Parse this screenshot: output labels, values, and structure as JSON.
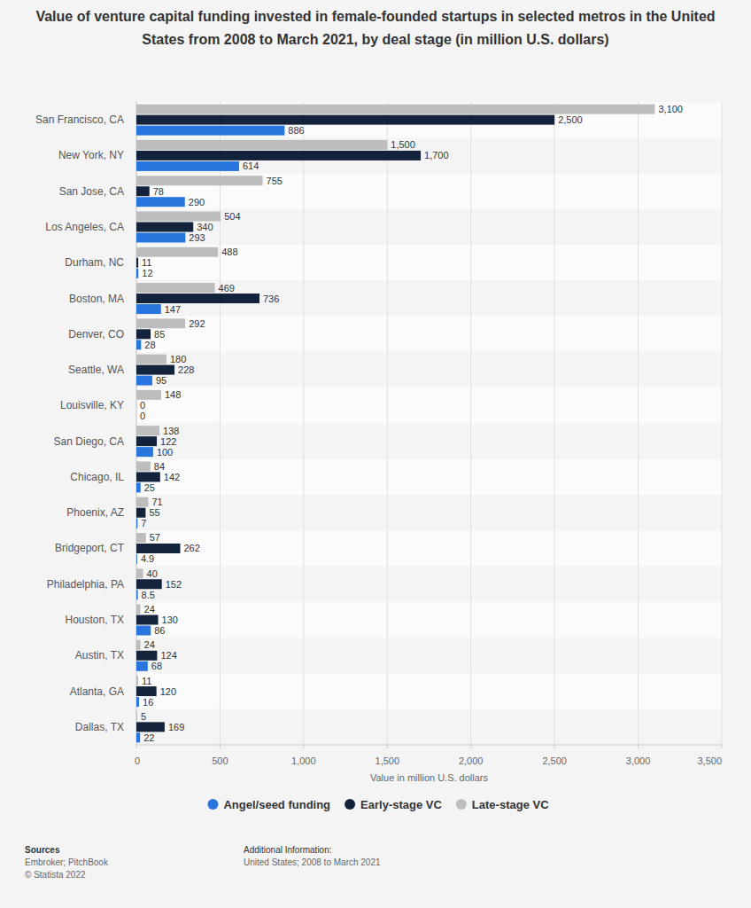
{
  "chart_data": {
    "type": "bar",
    "title": "Value of venture capital funding invested in female-founded startups in selected metros in the United States from 2008 to March 2021, by deal stage (in million U.S. dollars)",
    "x_label": "Value in million U.S. dollars",
    "orientation": "horizontal",
    "data_labels": true,
    "grid": true,
    "legend": "bottom",
    "categories": [
      "San Francisco, CA",
      "New York, NY",
      "San Jose, CA",
      "Los Angeles, CA",
      "Durham, NC",
      "Boston, MA",
      "Denver, CO",
      "Seattle, WA",
      "Louisville, KY",
      "San Diego, CA",
      "Chicago, IL",
      "Phoenix, AZ",
      "Bridgeport, CT",
      "Philadelphia, PA",
      "Houston, TX",
      "Austin, TX",
      "Atlanta, GA",
      "Dallas, TX"
    ],
    "series": [
      {
        "name": "Angel/seed funding",
        "color": "#2876dd",
        "values": [
          886,
          614,
          290,
          293,
          12,
          147,
          28,
          95,
          0,
          100,
          25,
          7,
          4.9,
          8.5,
          86,
          68,
          16,
          22
        ],
        "value_labels": [
          "886",
          "614",
          "290",
          "293",
          "12",
          "147",
          "28",
          "95",
          "0",
          "100",
          "25",
          "7",
          "4.9",
          "8.5",
          "86",
          "68",
          "16",
          "22"
        ]
      },
      {
        "name": "Early-stage VC",
        "color": "#14233c",
        "values": [
          2500,
          1700,
          78,
          340,
          11,
          736,
          85,
          228,
          0,
          122,
          142,
          55,
          262,
          152,
          130,
          124,
          120,
          169
        ],
        "value_labels": [
          "2,500",
          "1,700",
          "78",
          "340",
          "11",
          "736",
          "85",
          "228",
          "0",
          "122",
          "142",
          "55",
          "262",
          "152",
          "130",
          "124",
          "120",
          "169"
        ]
      },
      {
        "name": "Late-stage VC",
        "color": "#bdbdbd",
        "values": [
          3100,
          1500,
          755,
          504,
          488,
          469,
          292,
          180,
          148,
          138,
          84,
          71,
          57,
          40,
          24,
          24,
          11,
          5
        ],
        "value_labels": [
          "3,100",
          "1,500",
          "755",
          "504",
          "488",
          "469",
          "292",
          "180",
          "148",
          "138",
          "84",
          "71",
          "57",
          "40",
          "24",
          "24",
          "11",
          "5"
        ]
      }
    ],
    "xlim": [
      0,
      3500
    ],
    "xticks": [
      0,
      500,
      {
        "value": 1000,
        "label": "1,000"
      },
      {
        "value": 1500,
        "label": "1,500"
      },
      {
        "value": 2000,
        "label": "2,000"
      },
      {
        "value": 2500,
        "label": "2,500"
      },
      {
        "value": 3000,
        "label": "3,000"
      },
      {
        "value": 3500,
        "label": "3,500"
      }
    ],
    "annotations": [
      "Sources",
      "Embroker; PitchBook",
      "© Statista 2022",
      "Additional Information:",
      "United States; 2008 to March 2021"
    ]
  }
}
